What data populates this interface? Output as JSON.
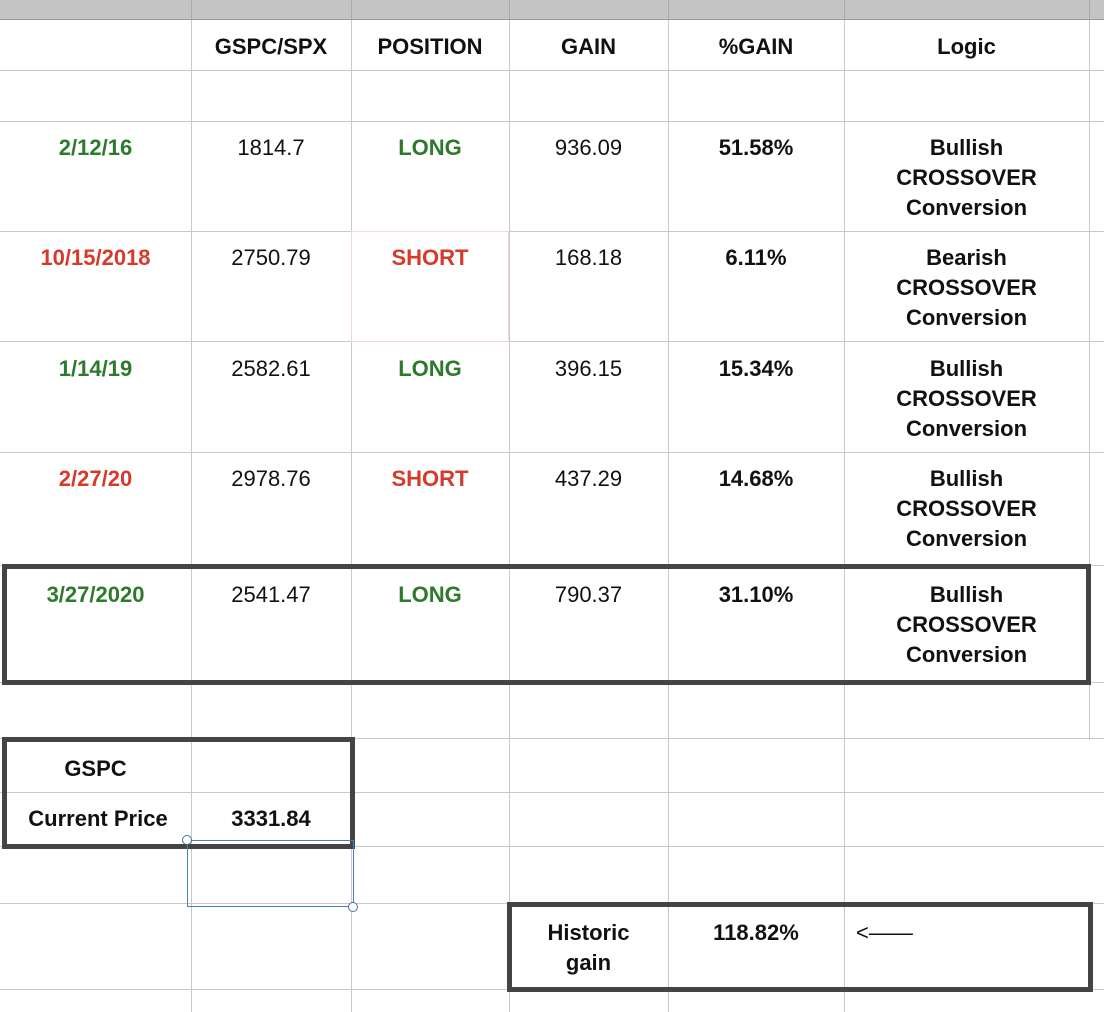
{
  "header": {
    "col1": "GSPC/SPX",
    "col2": "POSITION",
    "col3": "GAIN",
    "col4": "%GAIN",
    "col5": "Logic"
  },
  "rows": [
    {
      "date": "2/12/16",
      "price": "1814.7",
      "position": "LONG",
      "gain": "936.09",
      "pct": "51.58%",
      "logic": [
        "Bullish",
        "CROSSOVER",
        "Conversion"
      ]
    },
    {
      "date": "10/15/2018",
      "price": "2750.79",
      "position": "SHORT",
      "gain": "168.18",
      "pct": "6.11%",
      "logic": [
        "Bearish",
        "CROSSOVER",
        "Conversion"
      ]
    },
    {
      "date": "1/14/19",
      "price": "2582.61",
      "position": "LONG",
      "gain": "396.15",
      "pct": "15.34%",
      "logic": [
        "Bullish",
        "CROSSOVER",
        "Conversion"
      ]
    },
    {
      "date": "2/27/20",
      "price": "2978.76",
      "position": "SHORT",
      "gain": "437.29",
      "pct": "14.68%",
      "logic": [
        "Bullish",
        "CROSSOVER",
        "Conversion"
      ]
    },
    {
      "date": "3/27/2020",
      "price": "2541.47",
      "position": "LONG",
      "gain": "790.37",
      "pct": "31.10%",
      "logic": [
        "Bullish",
        "CROSSOVER",
        "Conversion"
      ]
    }
  ],
  "current": {
    "label_top": "GSPC",
    "label": "Current Price",
    "value": "3331.84"
  },
  "historic": {
    "label_line1": "Historic",
    "label_line2": "gain",
    "value": "118.82%",
    "arrow": "<——"
  },
  "colors": {
    "long": "#2d7a2d",
    "short": "#d63a2a",
    "frame": "#444444",
    "selection": "#4a7fc1"
  }
}
